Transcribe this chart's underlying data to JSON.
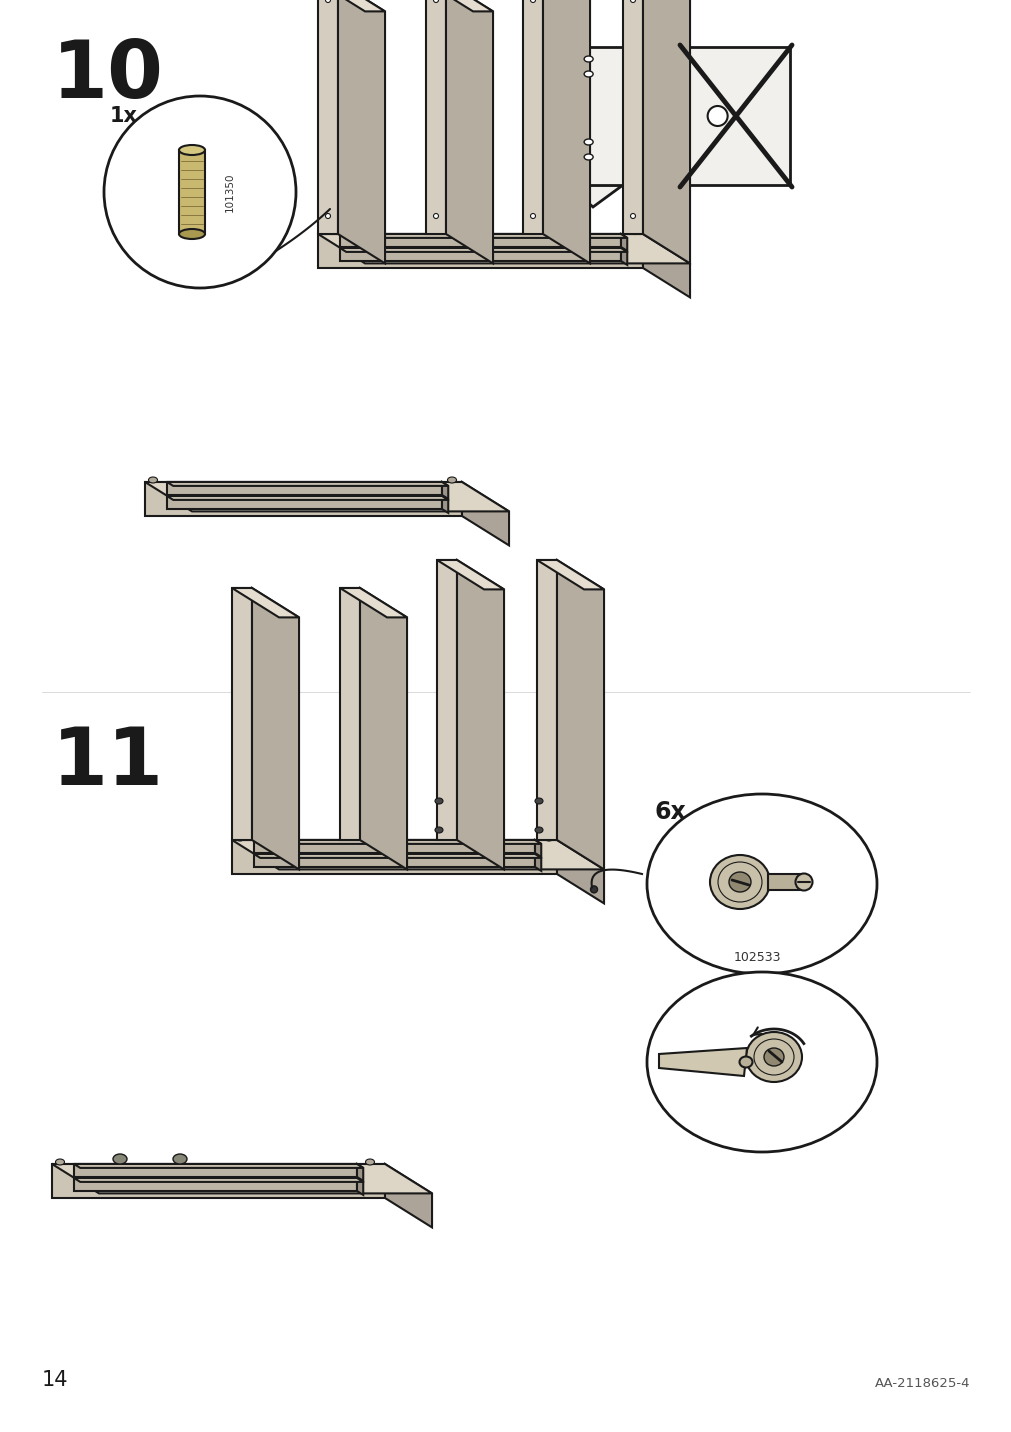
{
  "page_number": "14",
  "doc_code": "AA-2118625-4",
  "step10_number": "10",
  "step11_number": "11",
  "part_code_10": "101350",
  "part_count_10": "1x",
  "part_code_11": "102533",
  "part_count_11": "6x",
  "bg_color": "#ffffff",
  "line_color": "#1a1a1a",
  "wood_light": "#e8e0d0",
  "wood_mid": "#d0c8b8",
  "wood_dark": "#b0a898",
  "wood_shadow": "#908880"
}
